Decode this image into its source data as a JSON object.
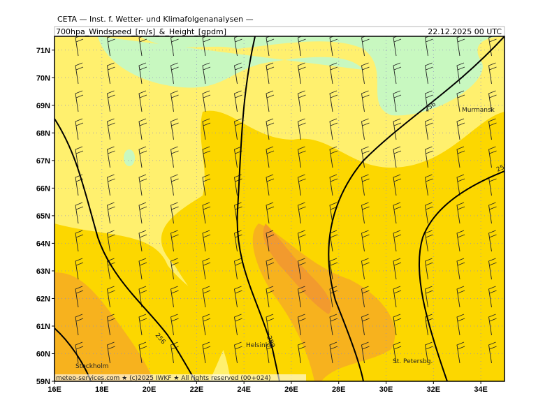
{
  "header": {
    "title": "CETA — Inst. f. Wetter- und Klimafolgenanalysen —",
    "subtitle": "700hpa_Windspeed_[m/s]_&_Height_[gpdm]",
    "date": "22.12.2025 00 UTC"
  },
  "map": {
    "lon_range": [
      16,
      35
    ],
    "lat_range": [
      59,
      71.5
    ],
    "lat_ticks": [
      {
        "value": 59,
        "label": "59N"
      },
      {
        "value": 60,
        "label": "60N"
      },
      {
        "value": 61,
        "label": "61N"
      },
      {
        "value": 62,
        "label": "62N"
      },
      {
        "value": 63,
        "label": "63N"
      },
      {
        "value": 64,
        "label": "64N"
      },
      {
        "value": 65,
        "label": "65N"
      },
      {
        "value": 66,
        "label": "66N"
      },
      {
        "value": 67,
        "label": "67N"
      },
      {
        "value": 68,
        "label": "68N"
      },
      {
        "value": 69,
        "label": "69N"
      },
      {
        "value": 70,
        "label": "70N"
      },
      {
        "value": 71,
        "label": "71N"
      }
    ],
    "lon_ticks": [
      {
        "value": 16,
        "label": "16E"
      },
      {
        "value": 18,
        "label": "18E"
      },
      {
        "value": 20,
        "label": "20E"
      },
      {
        "value": 22,
        "label": "22E"
      },
      {
        "value": 24,
        "label": "24E"
      },
      {
        "value": 26,
        "label": "26E"
      },
      {
        "value": 28,
        "label": "28E"
      },
      {
        "value": 30,
        "label": "30E"
      },
      {
        "value": 32,
        "label": "32E"
      },
      {
        "value": 34,
        "label": "34E"
      }
    ],
    "cities": [
      "Murmansk",
      "Helsinki",
      "Stockholm",
      "St. Petersbg."
    ],
    "contour_labels": [
      "256",
      "256",
      "258",
      "256"
    ]
  },
  "footer": "meteo-services.com ★ (c)2025 IWKF ★ All rights reserved (00+024)"
}
